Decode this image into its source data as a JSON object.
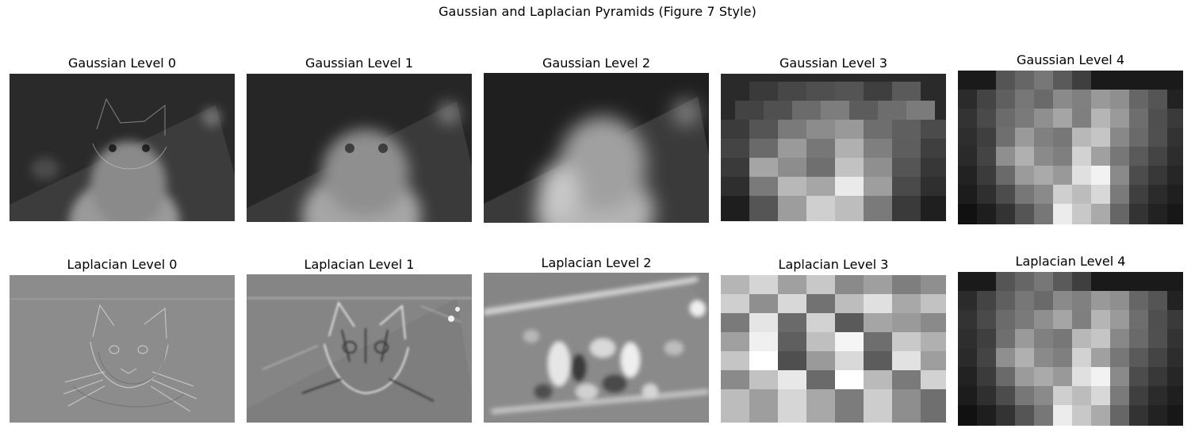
{
  "figure": {
    "suptitle": "Gaussian and Laplacian Pyramids (Figure 7 Style)"
  },
  "rows": [
    {
      "kind": "gaussian",
      "panels": [
        {
          "title": "Gaussian Level 0",
          "icon": "gaussian-level-0-image"
        },
        {
          "title": "Gaussian Level 1",
          "icon": "gaussian-level-1-image"
        },
        {
          "title": "Gaussian Level 2",
          "icon": "gaussian-level-2-image"
        },
        {
          "title": "Gaussian Level 3",
          "icon": "gaussian-level-3-image"
        },
        {
          "title": "Gaussian Level 4",
          "icon": "gaussian-level-4-image"
        }
      ]
    },
    {
      "kind": "laplacian",
      "panels": [
        {
          "title": "Laplacian Level 0",
          "icon": "laplacian-level-0-image"
        },
        {
          "title": "Laplacian Level 1",
          "icon": "laplacian-level-1-image"
        },
        {
          "title": "Laplacian Level 2",
          "icon": "laplacian-level-2-image"
        },
        {
          "title": "Laplacian Level 3",
          "icon": "laplacian-level-3-image"
        },
        {
          "title": "Laplacian Level 4",
          "icon": "laplacian-level-4-image"
        }
      ]
    }
  ]
}
